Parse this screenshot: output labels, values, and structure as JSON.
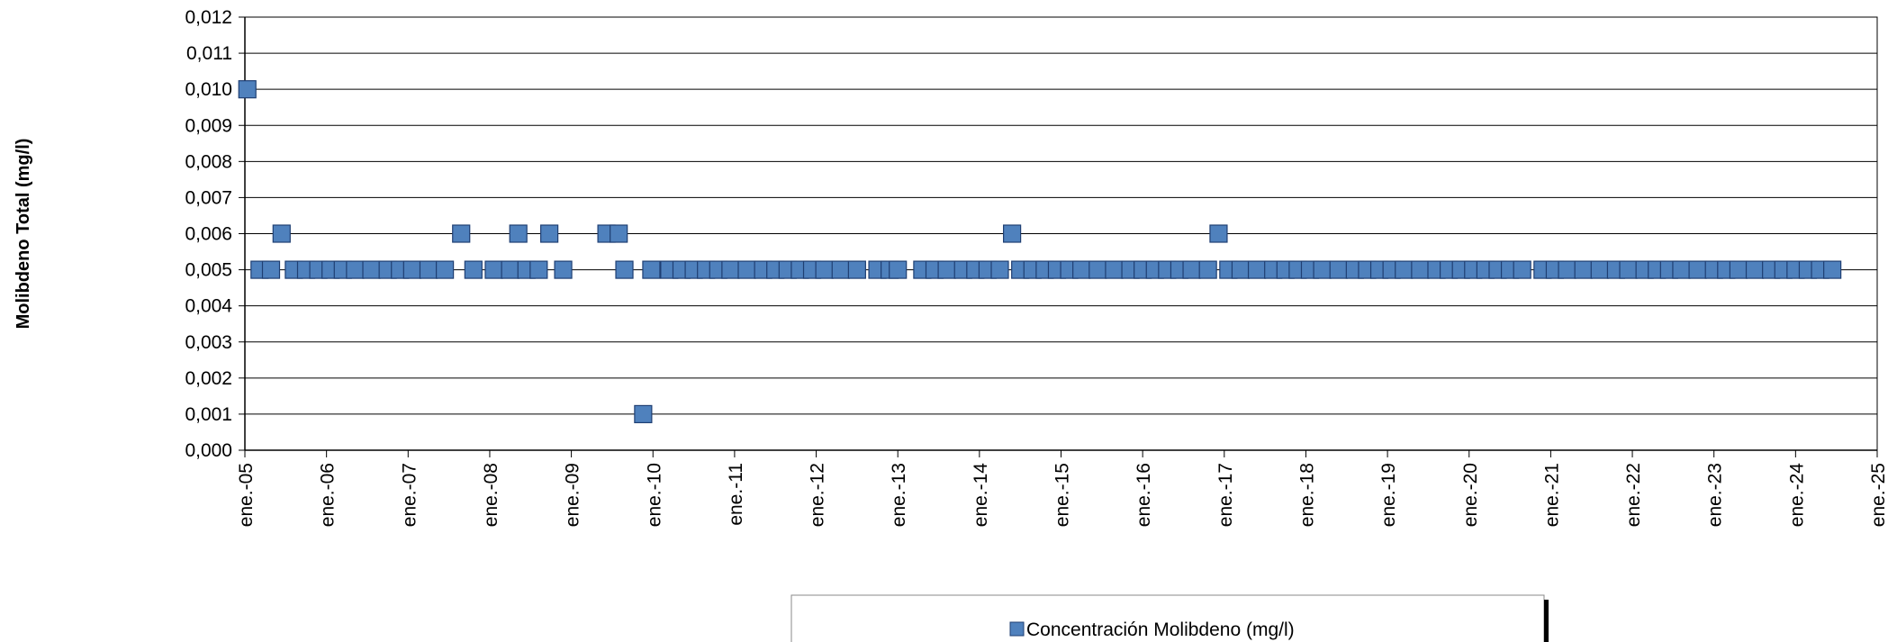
{
  "chart_data": {
    "type": "scatter",
    "ylabel": "Molibdeno Total (mg/l)",
    "xlabel": "",
    "title": "",
    "ylim": [
      0,
      0.012
    ],
    "y_step": 0.001,
    "y_tick_labels": [
      "0,000",
      "0,001",
      "0,002",
      "0,003",
      "0,004",
      "0,005",
      "0,006",
      "0,007",
      "0,008",
      "0,009",
      "0,010",
      "0,011",
      "0,012"
    ],
    "x_tick_labels": [
      "ene.-05",
      "ene.-06",
      "ene.-07",
      "ene.-08",
      "ene.-09",
      "ene.-10",
      "ene.-11",
      "ene.-12",
      "ene.-13",
      "ene.-14",
      "ene.-15",
      "ene.-16",
      "ene.-17",
      "ene.-18",
      "ene.-19",
      "ene.-20",
      "ene.-21",
      "ene.-22",
      "ene.-23",
      "ene.-24",
      "ene.-25"
    ],
    "xlim": [
      2005.0,
      2025.0
    ],
    "grid": true,
    "legend_position": "bottom",
    "colors": {
      "marker_fill": "#4F81BD",
      "marker_edge": "#1F3F73",
      "grid": "#000000"
    },
    "series": [
      {
        "name": "Concentración Molibdeno (mg/l)",
        "points": [
          [
            2005.03,
            0.01
          ],
          [
            2005.45,
            0.006
          ],
          [
            2007.65,
            0.006
          ],
          [
            2008.35,
            0.006
          ],
          [
            2008.73,
            0.006
          ],
          [
            2009.43,
            0.006
          ],
          [
            2009.58,
            0.006
          ],
          [
            2014.4,
            0.006
          ],
          [
            2016.93,
            0.006
          ],
          [
            2009.88,
            0.001
          ],
          [
            2005.18,
            0.005
          ],
          [
            2005.32,
            0.005
          ],
          [
            2005.6,
            0.005
          ],
          [
            2005.75,
            0.005
          ],
          [
            2005.9,
            0.005
          ],
          [
            2006.05,
            0.005
          ],
          [
            2006.2,
            0.005
          ],
          [
            2006.35,
            0.005
          ],
          [
            2006.55,
            0.005
          ],
          [
            2006.75,
            0.005
          ],
          [
            2006.9,
            0.005
          ],
          [
            2007.05,
            0.005
          ],
          [
            2007.25,
            0.005
          ],
          [
            2007.45,
            0.005
          ],
          [
            2007.8,
            0.005
          ],
          [
            2008.05,
            0.005
          ],
          [
            2008.25,
            0.005
          ],
          [
            2008.45,
            0.005
          ],
          [
            2008.6,
            0.005
          ],
          [
            2008.9,
            0.005
          ],
          [
            2009.65,
            0.005
          ],
          [
            2009.98,
            0.005
          ],
          [
            2010.2,
            0.005
          ],
          [
            2010.35,
            0.005
          ],
          [
            2010.5,
            0.005
          ],
          [
            2010.65,
            0.005
          ],
          [
            2010.8,
            0.005
          ],
          [
            2010.95,
            0.005
          ],
          [
            2011.15,
            0.005
          ],
          [
            2011.35,
            0.005
          ],
          [
            2011.5,
            0.005
          ],
          [
            2011.65,
            0.005
          ],
          [
            2011.8,
            0.005
          ],
          [
            2011.95,
            0.005
          ],
          [
            2012.1,
            0.005
          ],
          [
            2012.3,
            0.005
          ],
          [
            2012.5,
            0.005
          ],
          [
            2012.75,
            0.005
          ],
          [
            2012.9,
            0.005
          ],
          [
            2013.0,
            0.005
          ],
          [
            2013.3,
            0.005
          ],
          [
            2013.45,
            0.005
          ],
          [
            2013.6,
            0.005
          ],
          [
            2013.8,
            0.005
          ],
          [
            2013.95,
            0.005
          ],
          [
            2014.1,
            0.005
          ],
          [
            2014.25,
            0.005
          ],
          [
            2014.5,
            0.005
          ],
          [
            2014.65,
            0.005
          ],
          [
            2014.8,
            0.005
          ],
          [
            2014.95,
            0.005
          ],
          [
            2015.1,
            0.005
          ],
          [
            2015.25,
            0.005
          ],
          [
            2015.45,
            0.005
          ],
          [
            2015.65,
            0.005
          ],
          [
            2015.85,
            0.005
          ],
          [
            2016.0,
            0.005
          ],
          [
            2016.15,
            0.005
          ],
          [
            2016.3,
            0.005
          ],
          [
            2016.45,
            0.005
          ],
          [
            2016.6,
            0.005
          ],
          [
            2016.8,
            0.005
          ],
          [
            2017.05,
            0.005
          ],
          [
            2017.2,
            0.005
          ],
          [
            2017.4,
            0.005
          ],
          [
            2017.6,
            0.005
          ],
          [
            2017.75,
            0.005
          ],
          [
            2017.9,
            0.005
          ],
          [
            2018.05,
            0.005
          ],
          [
            2018.2,
            0.005
          ],
          [
            2018.4,
            0.005
          ],
          [
            2018.6,
            0.005
          ],
          [
            2018.75,
            0.005
          ],
          [
            2018.9,
            0.005
          ],
          [
            2019.05,
            0.005
          ],
          [
            2019.2,
            0.005
          ],
          [
            2019.4,
            0.005
          ],
          [
            2019.6,
            0.005
          ],
          [
            2019.75,
            0.005
          ],
          [
            2019.9,
            0.005
          ],
          [
            2020.05,
            0.005
          ],
          [
            2020.2,
            0.005
          ],
          [
            2020.35,
            0.005
          ],
          [
            2020.5,
            0.005
          ],
          [
            2020.65,
            0.005
          ],
          [
            2020.9,
            0.005
          ],
          [
            2021.05,
            0.005
          ],
          [
            2021.2,
            0.005
          ],
          [
            2021.4,
            0.005
          ],
          [
            2021.6,
            0.005
          ],
          [
            2021.8,
            0.005
          ],
          [
            2021.95,
            0.005
          ],
          [
            2022.15,
            0.005
          ],
          [
            2022.3,
            0.005
          ],
          [
            2022.45,
            0.005
          ],
          [
            2022.6,
            0.005
          ],
          [
            2022.8,
            0.005
          ],
          [
            2023.0,
            0.005
          ],
          [
            2023.15,
            0.005
          ],
          [
            2023.3,
            0.005
          ],
          [
            2023.5,
            0.005
          ],
          [
            2023.7,
            0.005
          ],
          [
            2023.85,
            0.005
          ],
          [
            2024.0,
            0.005
          ],
          [
            2024.15,
            0.005
          ],
          [
            2024.3,
            0.005
          ],
          [
            2024.45,
            0.005
          ]
        ]
      }
    ]
  }
}
